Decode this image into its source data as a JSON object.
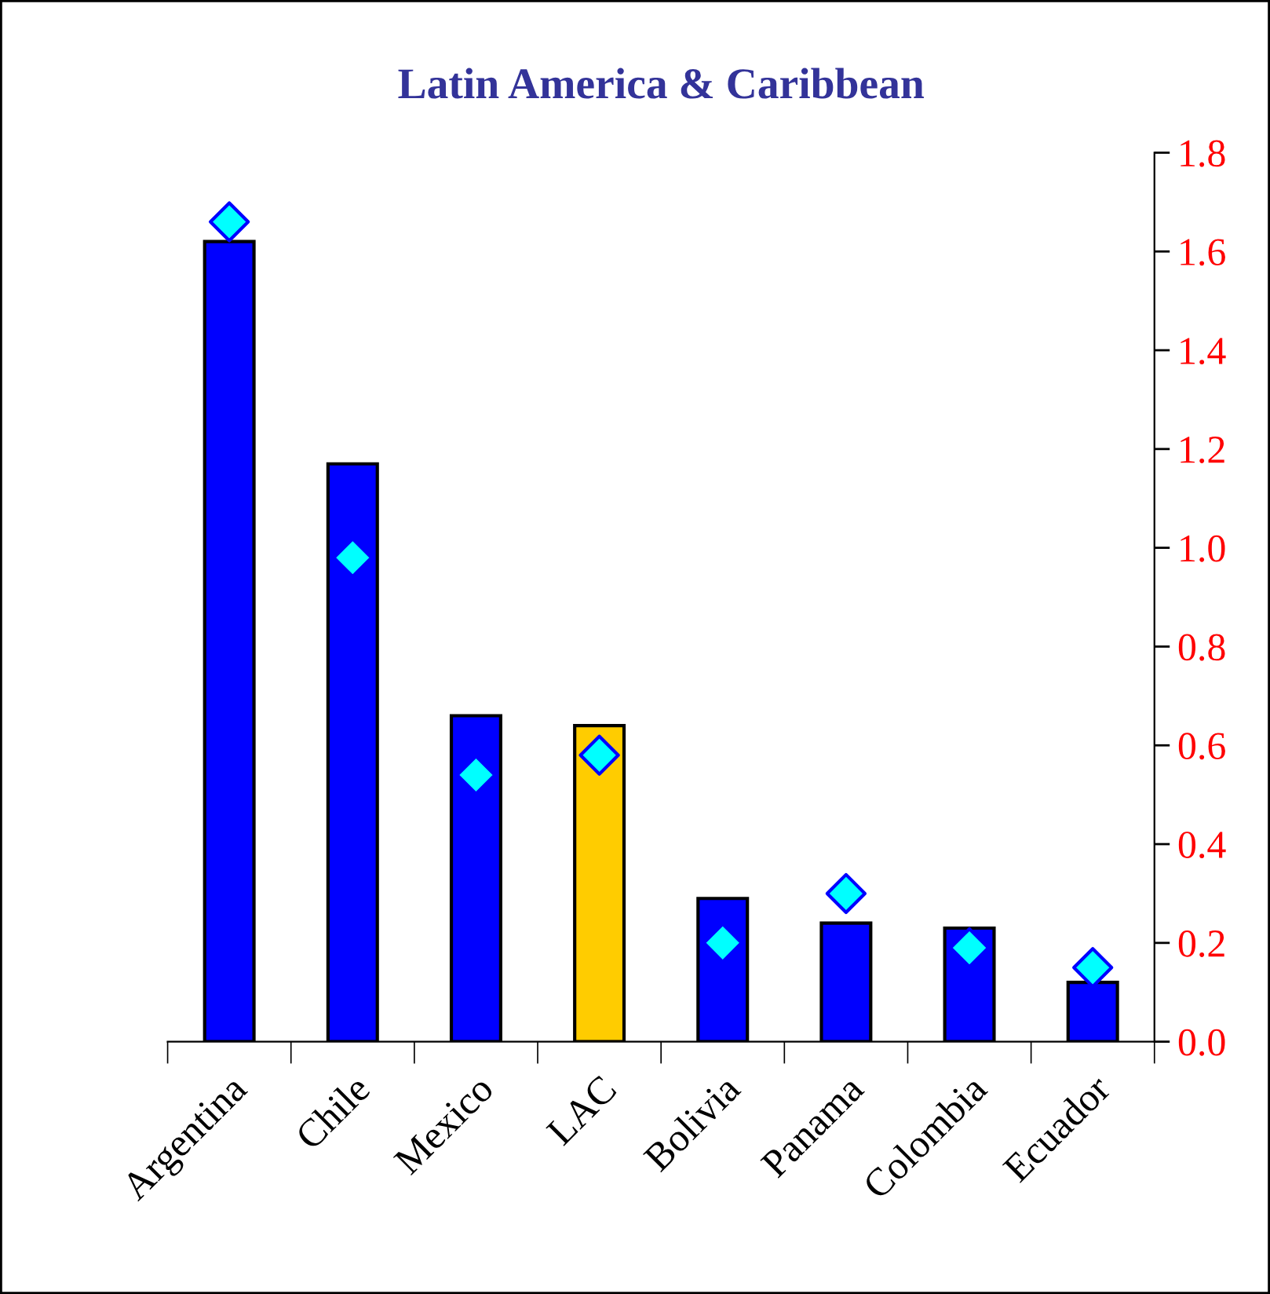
{
  "chart_data": {
    "type": "bar",
    "title": "Latin America & Caribbean",
    "categories": [
      "Argentina",
      "Chile",
      "Mexico",
      "LAC",
      "Bolivia",
      "Panama",
      "Colombia",
      "Ecuador"
    ],
    "series": [
      {
        "colors": [
          "#0000ff",
          "#0000ff",
          "#0000ff",
          "#ffcc00",
          "#0000ff",
          "#0000ff",
          "#0000ff",
          "#0000ff"
        ],
        "values": [
          1.62,
          1.17,
          0.66,
          0.64,
          0.29,
          0.24,
          0.23,
          0.12
        ]
      },
      {
        "type": "scatter",
        "color": "#00ffff",
        "marker": "diamond",
        "values": [
          1.66,
          0.98,
          0.54,
          0.58,
          0.2,
          0.3,
          0.19,
          0.15
        ]
      }
    ],
    "ylim": [
      0,
      1.8
    ],
    "yticks": [
      {
        "value": 0,
        "label": "0.0"
      },
      {
        "value": 0.2,
        "label": "0.2"
      },
      {
        "value": 0.4,
        "label": "0.4"
      },
      {
        "value": 0.6,
        "label": "0.6"
      },
      {
        "value": 0.8,
        "label": "0.8"
      },
      {
        "value": 1.0,
        "label": "1.0"
      },
      {
        "value": 1.2,
        "label": "1.2"
      },
      {
        "value": 1.4,
        "label": "1.4"
      },
      {
        "value": 1.6,
        "label": "1.6"
      },
      {
        "value": 1.8,
        "label": "1.8"
      }
    ],
    "grid": false,
    "legend": false
  }
}
